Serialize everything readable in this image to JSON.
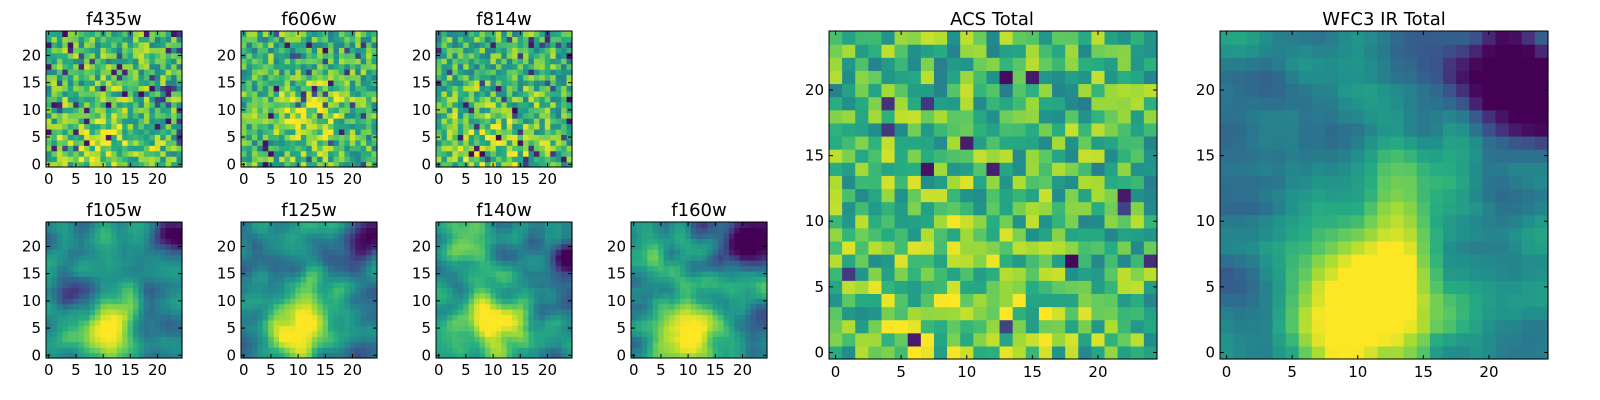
{
  "colors": {
    "low": "#440154",
    "mid_low": "#3b528b",
    "mid": "#21918c",
    "mid_high": "#5ec962",
    "high": "#fde725",
    "frame": "#000000"
  },
  "chart_data": [
    {
      "type": "heatmap",
      "id": "f435w",
      "title": "f435w",
      "grid": [
        25,
        25
      ],
      "xlim": [
        -0.5,
        24.5
      ],
      "ylim": [
        -0.5,
        24.5
      ],
      "xticks": [
        0,
        5,
        10,
        15,
        20
      ],
      "yticks": [
        0,
        5,
        10,
        15,
        20
      ],
      "colormap": "viridis",
      "pattern": "noise",
      "brightness": [
        {
          "x": 10,
          "y": 3,
          "sigma": 7,
          "amp": 0.15
        }
      ],
      "dark_fraction": 0.08
    },
    {
      "type": "heatmap",
      "id": "f606w",
      "title": "f606w",
      "grid": [
        25,
        25
      ],
      "xlim": [
        -0.5,
        24.5
      ],
      "ylim": [
        -0.5,
        24.5
      ],
      "xticks": [
        0,
        5,
        10,
        15,
        20
      ],
      "yticks": [
        0,
        5,
        10,
        15,
        20
      ],
      "colormap": "viridis",
      "pattern": "noise",
      "brightness": [
        {
          "x": 12,
          "y": 9,
          "sigma": 4,
          "amp": 0.25
        }
      ],
      "dark_fraction": 0.06
    },
    {
      "type": "heatmap",
      "id": "f814w",
      "title": "f814w",
      "grid": [
        25,
        25
      ],
      "xlim": [
        -0.5,
        24.5
      ],
      "ylim": [
        -0.5,
        24.5
      ],
      "xticks": [
        0,
        5,
        10,
        15,
        20
      ],
      "yticks": [
        0,
        5,
        10,
        15,
        20
      ],
      "colormap": "viridis",
      "pattern": "noise",
      "brightness": [
        {
          "x": 10,
          "y": 3,
          "sigma": 6,
          "amp": 0.15
        }
      ],
      "dark_fraction": 0.07
    },
    {
      "type": "heatmap",
      "id": "f105w",
      "title": "f105w",
      "grid": [
        25,
        25
      ],
      "xlim": [
        -0.5,
        24.5
      ],
      "ylim": [
        -0.5,
        24.5
      ],
      "xticks": [
        0,
        5,
        10,
        15,
        20
      ],
      "yticks": [
        0,
        5,
        10,
        15,
        20
      ],
      "colormap": "viridis",
      "pattern": "smooth",
      "brightness": [
        {
          "x": 10,
          "y": 4,
          "sigma": 3.5,
          "amp": 0.55
        },
        {
          "x": 13,
          "y": 10,
          "sigma": 3,
          "amp": 0.2
        }
      ],
      "darkness": [
        {
          "x": 24,
          "y": 22,
          "sigma": 2.5,
          "amp": 0.5
        },
        {
          "x": 4,
          "y": 12,
          "sigma": 2,
          "amp": 0.3
        }
      ]
    },
    {
      "type": "heatmap",
      "id": "f125w",
      "title": "f125w",
      "grid": [
        25,
        25
      ],
      "xlim": [
        -0.5,
        24.5
      ],
      "ylim": [
        -0.5,
        24.5
      ],
      "xticks": [
        0,
        5,
        10,
        15,
        20
      ],
      "yticks": [
        0,
        5,
        10,
        15,
        20
      ],
      "colormap": "viridis",
      "pattern": "smooth",
      "brightness": [
        {
          "x": 10,
          "y": 5,
          "sigma": 4,
          "amp": 0.55
        },
        {
          "x": 13,
          "y": 11,
          "sigma": 3,
          "amp": 0.25
        }
      ],
      "darkness": [
        {
          "x": 24,
          "y": 23,
          "sigma": 2.5,
          "amp": 0.55
        },
        {
          "x": 22,
          "y": 18,
          "sigma": 2,
          "amp": 0.3
        }
      ]
    },
    {
      "type": "heatmap",
      "id": "f140w",
      "title": "f140w",
      "grid": [
        25,
        25
      ],
      "xlim": [
        -0.5,
        24.5
      ],
      "ylim": [
        -0.5,
        24.5
      ],
      "xticks": [
        0,
        5,
        10,
        15,
        20
      ],
      "yticks": [
        0,
        5,
        10,
        15,
        20
      ],
      "colormap": "viridis",
      "pattern": "smooth",
      "brightness": [
        {
          "x": 10,
          "y": 6,
          "sigma": 4.5,
          "amp": 0.6
        },
        {
          "x": 5,
          "y": 20,
          "sigma": 4,
          "amp": 0.25
        }
      ],
      "darkness": [
        {
          "x": 24,
          "y": 18,
          "sigma": 2.5,
          "amp": 0.6
        }
      ]
    },
    {
      "type": "heatmap",
      "id": "f160w",
      "title": "f160w",
      "grid": [
        25,
        25
      ],
      "xlim": [
        -0.5,
        24.5
      ],
      "ylim": [
        -0.5,
        24.5
      ],
      "xticks": [
        0,
        5,
        10,
        15,
        20
      ],
      "yticks": [
        0,
        5,
        10,
        15,
        20
      ],
      "colormap": "viridis",
      "pattern": "smooth",
      "brightness": [
        {
          "x": 10,
          "y": 5,
          "sigma": 4.5,
          "amp": 0.65
        },
        {
          "x": 3,
          "y": 18,
          "sigma": 4,
          "amp": 0.2
        }
      ],
      "darkness": [
        {
          "x": 24,
          "y": 22,
          "sigma": 3,
          "amp": 0.65
        },
        {
          "x": 20,
          "y": 20,
          "sigma": 2.5,
          "amp": 0.3
        }
      ]
    },
    {
      "type": "heatmap",
      "id": "acs-total",
      "title": "ACS Total",
      "grid": [
        25,
        25
      ],
      "xlim": [
        -0.5,
        24.5
      ],
      "ylim": [
        -0.5,
        24.5
      ],
      "xticks": [
        0,
        5,
        10,
        15,
        20
      ],
      "yticks": [
        0,
        5,
        10,
        15,
        20
      ],
      "colormap": "viridis",
      "pattern": "noise",
      "brightness": [
        {
          "x": 10,
          "y": 4,
          "sigma": 6,
          "amp": 0.15
        }
      ],
      "dark_fraction": 0.03
    },
    {
      "type": "heatmap",
      "id": "wfc3-ir-total",
      "title": "WFC3 IR Total",
      "grid": [
        25,
        25
      ],
      "xlim": [
        -0.5,
        24.5
      ],
      "ylim": [
        -0.5,
        24.5
      ],
      "xticks": [
        0,
        5,
        10,
        15,
        20
      ],
      "yticks": [
        0,
        5,
        10,
        15,
        20
      ],
      "colormap": "viridis",
      "pattern": "smooth",
      "brightness": [
        {
          "x": 10,
          "y": 4,
          "sigma": 4,
          "amp": 0.7
        },
        {
          "x": 13,
          "y": 11,
          "sigma": 3,
          "amp": 0.25
        }
      ],
      "darkness": [
        {
          "x": 24,
          "y": 19,
          "sigma": 2.5,
          "amp": 0.6
        },
        {
          "x": 21,
          "y": 22,
          "sigma": 2.5,
          "amp": 0.45
        },
        {
          "x": 2,
          "y": 17,
          "sigma": 3,
          "amp": 0.15
        }
      ]
    }
  ]
}
